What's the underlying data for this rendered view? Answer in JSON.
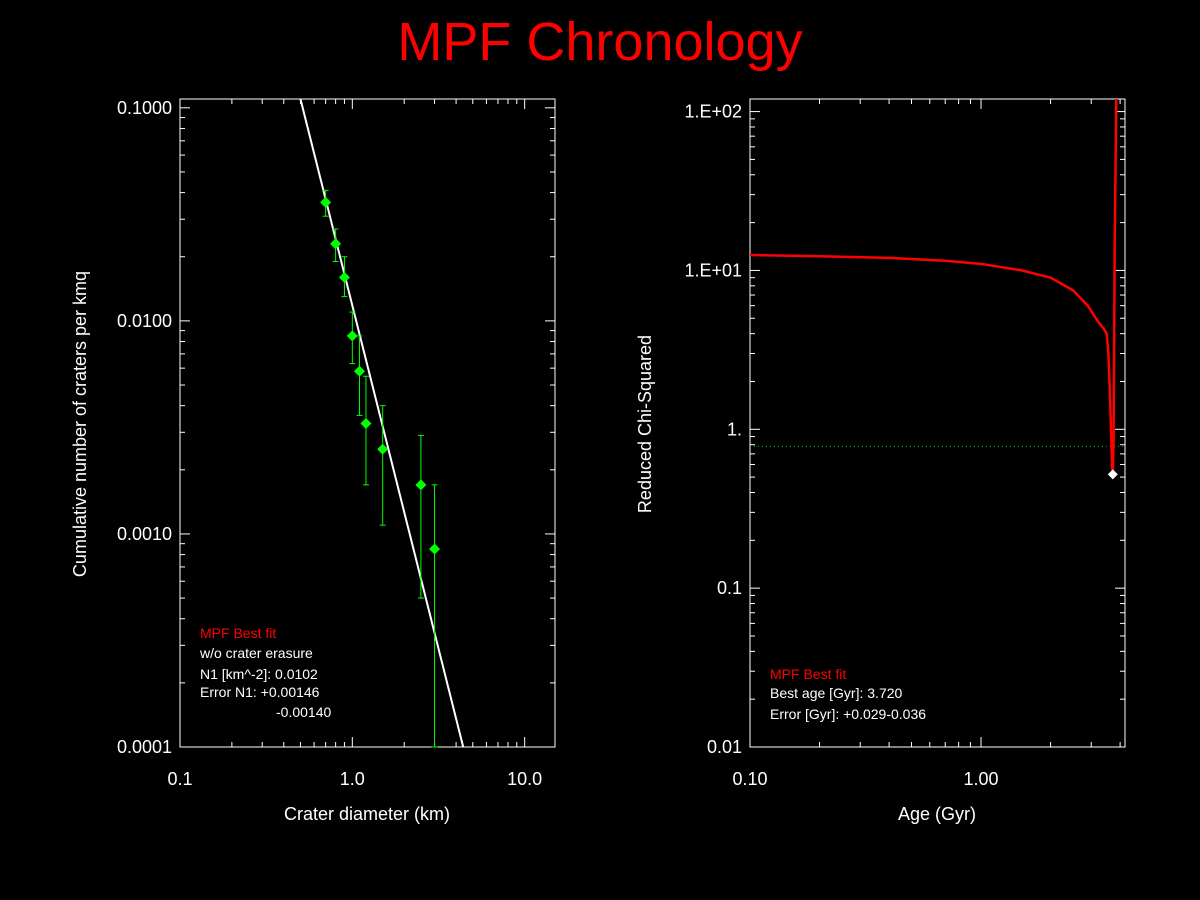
{
  "title": "MPF Chronology",
  "colors": {
    "background": "#000000",
    "title": "#ff0000",
    "axes": "#ffffff",
    "fit_line": "#ffffff",
    "data_points": "#00ff00",
    "chi_curve": "#ff0000",
    "threshold_line": "#00c800",
    "best_point": "#ffffff"
  },
  "chart_data": [
    {
      "type": "scatter",
      "xlabel": "Crater diameter (km)",
      "ylabel": "Cumulative number of craters per kmq",
      "xscale": "log",
      "yscale": "log",
      "xlim": [
        0.1,
        15
      ],
      "ylim": [
        0.0001,
        0.11
      ],
      "xticks": [
        0.1,
        1,
        10
      ],
      "xtick_labels": [
        "0.1",
        "1.0",
        "10.0"
      ],
      "yticks": [
        0.0001,
        0.001,
        0.01,
        0.1
      ],
      "ytick_labels": [
        "0.0001",
        "0.0010",
        "0.0100",
        "0.1000"
      ],
      "series": [
        {
          "kind": "points_with_error",
          "x": [
            0.7,
            0.8,
            0.9,
            1.0,
            1.1,
            1.2,
            1.5,
            2.5,
            3.0
          ],
          "y": [
            0.036,
            0.023,
            0.016,
            0.0085,
            0.0058,
            0.0033,
            0.0025,
            0.0017,
            0.00085
          ],
          "ylow": [
            0.031,
            0.019,
            0.013,
            0.0063,
            0.0036,
            0.0017,
            0.0011,
            0.0005,
            0.0001
          ],
          "yhigh": [
            0.041,
            0.027,
            0.02,
            0.011,
            0.0085,
            0.0055,
            0.004,
            0.0029,
            0.0017
          ]
        },
        {
          "kind": "line",
          "x": [
            0.5,
            4.4
          ],
          "y": [
            0.11,
            0.0001
          ]
        }
      ],
      "annotation": {
        "header": "MPF Best fit",
        "lines": [
          "w/o crater erasure",
          "N1 [km^-2]: 0.0102",
          "Error N1: +0.00146",
          "-0.00140"
        ]
      }
    },
    {
      "type": "line",
      "xlabel": "Age (Gyr)",
      "ylabel": "Reduced Chi-Squared",
      "xscale": "log",
      "yscale": "log",
      "xlim": [
        0.1,
        4.2
      ],
      "ylim": [
        0.01,
        120
      ],
      "xticks": [
        0.1,
        1
      ],
      "xtick_labels": [
        "0.10",
        "1.00"
      ],
      "yticks": [
        0.01,
        0.1,
        1,
        10,
        100
      ],
      "ytick_labels": [
        "0.01",
        "0.1",
        "1.",
        "1.E+01",
        "1.E+02"
      ],
      "series": [
        {
          "kind": "line",
          "x": [
            0.1,
            0.2,
            0.4,
            0.7,
            1.0,
            1.5,
            2.0,
            2.5,
            2.9,
            3.2,
            3.4,
            3.5,
            3.56,
            3.61,
            3.66,
            3.69,
            3.72,
            3.75,
            3.79,
            3.85
          ],
          "y": [
            12.5,
            12.3,
            12.0,
            11.5,
            11.0,
            10.0,
            9.0,
            7.5,
            6.0,
            4.8,
            4.3,
            4.0,
            3.0,
            1.8,
            0.9,
            0.6,
            0.52,
            0.9,
            15,
            120
          ]
        },
        {
          "kind": "hline_dotted",
          "y": 0.78
        },
        {
          "kind": "point",
          "x": 3.72,
          "y": 0.52
        }
      ],
      "annotation": {
        "header": "MPF Best fit",
        "lines": [
          "Best age [Gyr]: 3.720",
          "Error [Gyr]: +0.029-0.036"
        ]
      }
    }
  ]
}
